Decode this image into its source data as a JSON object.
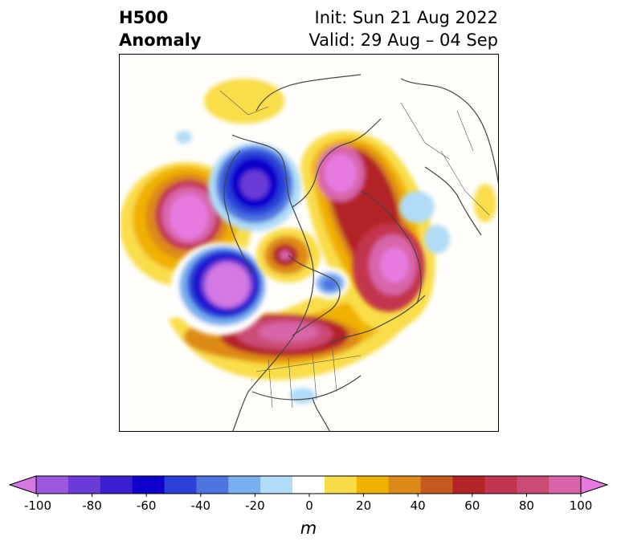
{
  "header": {
    "title_line1": "H500",
    "title_line2": "Anomaly",
    "init_text": "Init: Sun 21 Aug 2022",
    "valid_text": "Valid: 29 Aug – 04 Sep"
  },
  "map": {
    "field": "500 hPa geopotential height anomaly",
    "projection": "polar stereographic (North America centered)",
    "features": [
      {
        "name": "ridge-northeast-pacific",
        "sign": "positive",
        "peak_m": 100
      },
      {
        "name": "trough-gulf-of-alaska",
        "sign": "negative",
        "peak_m": -100
      },
      {
        "name": "trough-east-siberia",
        "sign": "negative",
        "peak_m": -70
      },
      {
        "name": "ridge-north-atlantic-greenland",
        "sign": "positive",
        "peak_m": 100
      },
      {
        "name": "ridge-scandinavia-europe",
        "sign": "positive",
        "peak_m": 90
      },
      {
        "name": "ridge-central-canada-us",
        "sign": "positive",
        "peak_m": 80
      },
      {
        "name": "small-ridge-arctic",
        "sign": "positive",
        "peak_m": 60
      },
      {
        "name": "weak-trough-hudson-bay",
        "sign": "negative",
        "peak_m": -40
      },
      {
        "name": "positive-chukchi",
        "sign": "positive",
        "peak_m": 15
      },
      {
        "name": "negative-southeast-us",
        "sign": "negative",
        "peak_m": -20
      }
    ]
  },
  "colorbar": {
    "unit": "m",
    "tick_labels": [
      "-100",
      "-80",
      "-60",
      "-40",
      "-20",
      "0",
      "20",
      "40",
      "60",
      "80",
      "100"
    ],
    "colors": [
      "#d479e4",
      "#9c58dc",
      "#6a3bd6",
      "#3a1fd0",
      "#0f00cc",
      "#2c3fd8",
      "#4e74e0",
      "#78afee",
      "#b0dcf7",
      "#ffffff",
      "#f9dd48",
      "#f0b100",
      "#de8a18",
      "#c65a1e",
      "#b32428",
      "#c3344e",
      "#cc4b76",
      "#d865a9",
      "#e77ae0"
    ],
    "extend": "both"
  }
}
